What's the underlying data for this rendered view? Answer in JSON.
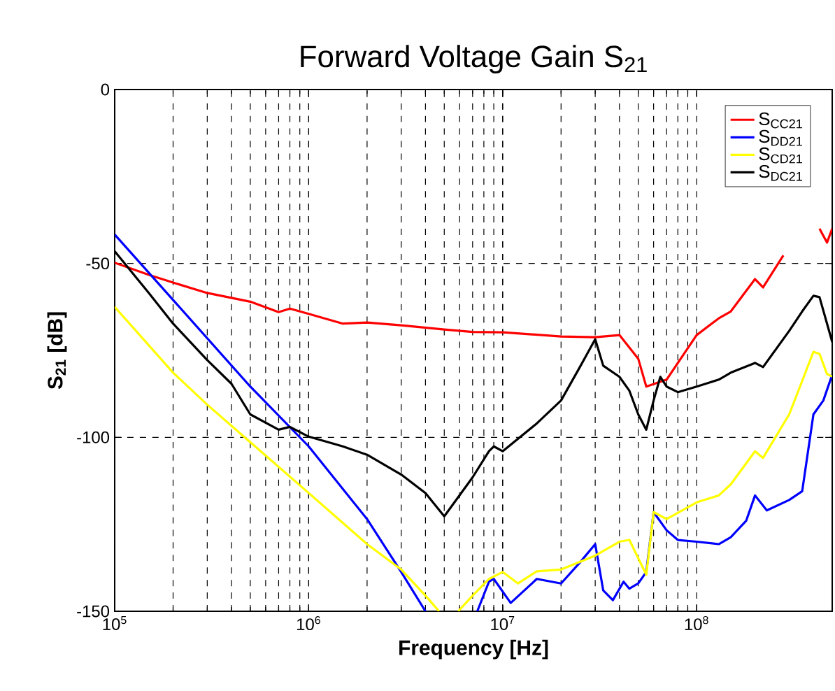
{
  "chart_data": {
    "type": "line",
    "title": "Forward Voltage Gain S$_{21}$",
    "xlabel": "Frequency [Hz]",
    "ylabel": "S$_{21}$ [dB]",
    "log": "x",
    "xlim": [
      100000,
      500000000
    ],
    "ylim": [
      -150,
      0
    ],
    "xticks": [
      {
        "value": 100000,
        "label": "10$^{5}$"
      },
      {
        "value": 1000000,
        "label": "10$^{6}$"
      },
      {
        "value": 10000000,
        "label": "10$^{7}$"
      },
      {
        "value": 100000000,
        "label": "10$^{8}$"
      }
    ],
    "yticks": [
      -150,
      -100,
      -50,
      0
    ],
    "grid": true,
    "legend": "top right",
    "line_style": "solid",
    "marker": "none",
    "series": [
      {
        "name": "S$_{CC21}$",
        "color": "#ff0000",
        "x": [
          100000,
          150000,
          200000,
          300000,
          500000,
          700000,
          800000,
          1000000,
          1500000,
          2000000,
          3000000,
          5000000,
          7000000,
          10000000,
          20000000,
          30000000,
          40000000,
          50000000,
          55000000,
          70000000,
          100000000,
          130000000,
          150000000,
          200000000,
          220000000,
          280000000,
          290000000,
          430000000,
          470000000,
          500000000
        ],
        "values": [
          -49.8,
          -53.3,
          -55.5,
          -58.5,
          -61,
          -64,
          -63,
          -64.5,
          -67.3,
          -67,
          -67.8,
          -69,
          -69.7,
          -69.8,
          -71,
          -71.2,
          -70.6,
          -77.4,
          -85.4,
          -83.4,
          -70.6,
          -65.8,
          -63.8,
          -54.5,
          -56.9,
          -47.7,
          null,
          -40,
          -44,
          -40
        ]
      },
      {
        "name": "S$_{DD21}$",
        "color": "#0000ff",
        "x": [
          100000,
          200000,
          500000,
          1000000,
          2000000,
          3000000,
          4000000,
          5000000,
          7400000,
          8500000,
          9000000,
          11000000,
          15000000,
          20000000,
          25000000,
          30000000,
          33000000,
          37000000,
          42000000,
          45000000,
          50000000,
          55000000,
          60000000,
          70000000,
          80000000,
          100000000,
          130000000,
          150000000,
          180000000,
          200000000,
          230000000,
          300000000,
          350000000,
          400000000,
          450000000,
          500000000
        ],
        "values": [
          -41.7,
          -60.5,
          -85.4,
          -102.6,
          -123.5,
          -138.7,
          -150,
          null,
          -150,
          -141.5,
          -140.7,
          -147.6,
          -140.7,
          -142,
          -136,
          -130.7,
          -144,
          -146.8,
          -141.5,
          -143.5,
          -142,
          -138.7,
          -121.5,
          -126.7,
          -129.5,
          -130,
          -130.7,
          -128.7,
          -124,
          -116.7,
          -121,
          -118,
          -115.5,
          -93.4,
          -89.4,
          -82
        ]
      },
      {
        "name": "S$_{CD21}$",
        "color": "#ffff00",
        "x": [
          100000,
          200000,
          300000,
          500000,
          1000000,
          2000000,
          3000000,
          4000000,
          4700000,
          5300000,
          5900000,
          7000000,
          8500000,
          10000000,
          12000000,
          15000000,
          20000000,
          30000000,
          40000000,
          45000000,
          55000000,
          60000000,
          70000000,
          100000000,
          130000000,
          150000000,
          200000000,
          220000000,
          300000000,
          350000000,
          400000000,
          430000000,
          470000000,
          500000000
        ],
        "values": [
          -62.5,
          -81.4,
          -90.6,
          -101.4,
          -116,
          -130.7,
          -138,
          -145.5,
          -150,
          null,
          -150,
          -145.5,
          -140.7,
          -138.7,
          -142,
          -138.5,
          -138,
          -134,
          -130,
          -129.5,
          -139.5,
          -121.5,
          -123.5,
          -118.7,
          -116.7,
          -113.5,
          -104,
          -105.9,
          -93.4,
          -83.8,
          -75.4,
          -76,
          -81.8,
          -82.5
        ]
      },
      {
        "name": "S$_{DC21}$",
        "color": "#000000",
        "x": [
          100000,
          150000,
          200000,
          300000,
          400000,
          500000,
          700000,
          800000,
          1000000,
          1500000,
          2000000,
          3000000,
          4000000,
          5000000,
          7000000,
          8500000,
          9000000,
          10000000,
          15000000,
          20000000,
          25000000,
          30000000,
          33000000,
          40000000,
          45000000,
          50000000,
          55000000,
          60000000,
          65000000,
          70000000,
          80000000,
          100000000,
          130000000,
          150000000,
          200000000,
          220000000,
          300000000,
          350000000,
          400000000,
          430000000,
          500000000
        ],
        "values": [
          -46.5,
          -58.5,
          -67.3,
          -77.8,
          -84.6,
          -93.4,
          -97.8,
          -97,
          -99.8,
          -102.6,
          -105,
          -110.7,
          -116,
          -122.7,
          -111.5,
          -104,
          -102.6,
          -104,
          -96,
          -89.4,
          -79.8,
          -71.8,
          -79.4,
          -82.6,
          -86.6,
          -93.4,
          -97.8,
          -89.4,
          -82.6,
          -85.4,
          -87,
          -85.4,
          -83.4,
          -81.4,
          -78.6,
          -79.8,
          -69.4,
          -63.8,
          -59.3,
          -59.7,
          -72.6
        ]
      }
    ]
  }
}
